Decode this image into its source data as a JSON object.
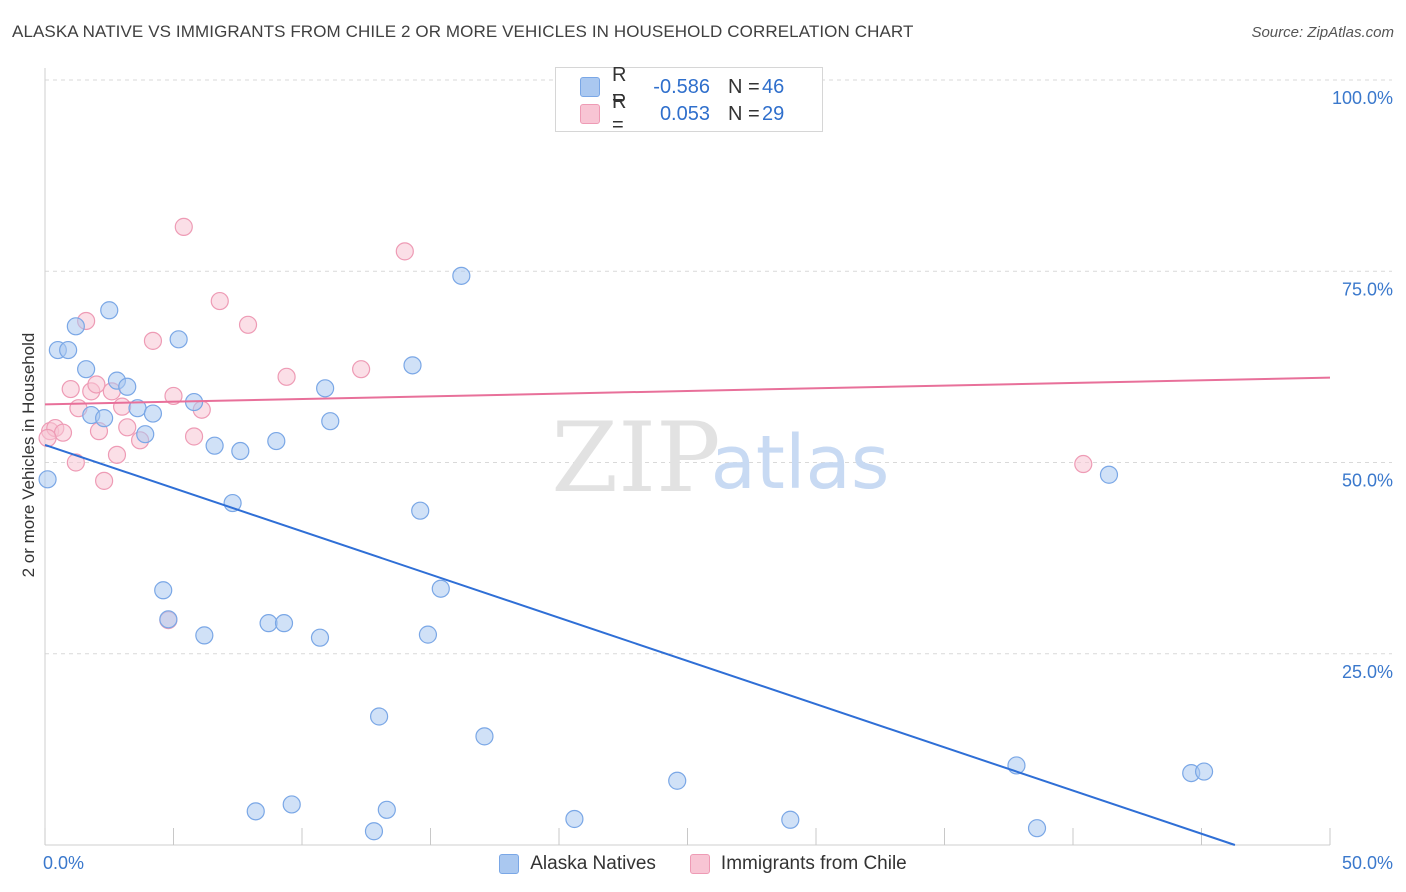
{
  "title": "ALASKA NATIVE VS IMMIGRANTS FROM CHILE 2 OR MORE VEHICLES IN HOUSEHOLD CORRELATION CHART",
  "source": "Source: ZipAtlas.com",
  "watermark": {
    "zip": "ZIP",
    "atlas": "atlas"
  },
  "legend_top": {
    "rows": [
      {
        "r_label": "R =",
        "r_value": "-0.586",
        "n_label": "N =",
        "n_value": "46"
      },
      {
        "r_label": "R =",
        "r_value": "0.053",
        "n_label": "N =",
        "n_value": "29"
      }
    ]
  },
  "legend_bottom": [
    "Alaska Natives",
    "Immigrants from Chile"
  ],
  "colors": {
    "blue_fill": "#aac8f0",
    "blue_stroke": "#7aa7e6",
    "blue_line": "#2f6fd6",
    "pink_fill": "#f8c5d4",
    "pink_stroke": "#ee9bb5",
    "pink_line": "#e8709a",
    "grid": "#d9d9d9",
    "tick_label": "#3a78cc"
  },
  "chart_data": {
    "type": "scatter",
    "title": "ALASKA NATIVE VS IMMIGRANTS FROM CHILE 2 OR MORE VEHICLES IN HOUSEHOLD CORRELATION CHART",
    "xlabel": "",
    "ylabel": "2 or more Vehicles in Household",
    "xlim": [
      0,
      50
    ],
    "ylim": [
      0,
      100
    ],
    "x_tick_labels": [
      "0.0%",
      "50.0%"
    ],
    "y_ticks": [
      25,
      50,
      75,
      100
    ],
    "y_tick_labels": [
      "25.0%",
      "50.0%",
      "75.0%",
      "100.0%"
    ],
    "grid": true,
    "series": [
      {
        "name": "Alaska Natives",
        "color": "blue",
        "points": [
          [
            0.1,
            47.8
          ],
          [
            0.5,
            64.7
          ],
          [
            0.9,
            64.7
          ],
          [
            1.2,
            67.8
          ],
          [
            1.6,
            62.2
          ],
          [
            2.5,
            69.9
          ],
          [
            1.8,
            56.2
          ],
          [
            2.3,
            55.8
          ],
          [
            2.8,
            60.7
          ],
          [
            3.2,
            59.9
          ],
          [
            3.6,
            57.1
          ],
          [
            3.9,
            53.7
          ],
          [
            4.2,
            56.4
          ],
          [
            4.6,
            33.3
          ],
          [
            4.8,
            29.5
          ],
          [
            5.2,
            66.1
          ],
          [
            5.8,
            57.9
          ],
          [
            6.2,
            27.4
          ],
          [
            6.6,
            52.2
          ],
          [
            7.3,
            44.7
          ],
          [
            7.6,
            51.5
          ],
          [
            8.2,
            4.4
          ],
          [
            8.7,
            29.0
          ],
          [
            9.0,
            52.8
          ],
          [
            9.3,
            29.0
          ],
          [
            9.6,
            5.3
          ],
          [
            10.7,
            27.1
          ],
          [
            10.9,
            59.7
          ],
          [
            11.1,
            55.4
          ],
          [
            12.8,
            1.8
          ],
          [
            13.0,
            16.8
          ],
          [
            13.3,
            4.6
          ],
          [
            14.3,
            62.7
          ],
          [
            14.6,
            43.7
          ],
          [
            14.9,
            27.5
          ],
          [
            15.4,
            33.5
          ],
          [
            16.2,
            74.4
          ],
          [
            17.1,
            14.2
          ],
          [
            20.6,
            3.4
          ],
          [
            24.6,
            8.4
          ],
          [
            29.0,
            3.3
          ],
          [
            37.8,
            10.4
          ],
          [
            38.6,
            2.2
          ],
          [
            41.4,
            48.4
          ],
          [
            44.6,
            9.4
          ],
          [
            45.1,
            9.6
          ]
        ],
        "trend": {
          "x": [
            0,
            46.3
          ],
          "y": [
            52.3,
            0
          ]
        }
      },
      {
        "name": "Immigrants from Chile",
        "color": "pink",
        "points": [
          [
            0.2,
            54.1
          ],
          [
            0.4,
            54.5
          ],
          [
            0.7,
            53.9
          ],
          [
            1.0,
            59.6
          ],
          [
            1.2,
            50.0
          ],
          [
            1.3,
            57.1
          ],
          [
            1.6,
            68.5
          ],
          [
            1.8,
            59.3
          ],
          [
            2.0,
            60.2
          ],
          [
            2.1,
            54.1
          ],
          [
            2.3,
            47.6
          ],
          [
            2.6,
            59.3
          ],
          [
            2.8,
            51.0
          ],
          [
            3.0,
            57.3
          ],
          [
            3.2,
            54.6
          ],
          [
            3.7,
            52.9
          ],
          [
            4.2,
            65.9
          ],
          [
            4.8,
            29.4
          ],
          [
            5.0,
            58.7
          ],
          [
            5.4,
            80.8
          ],
          [
            5.8,
            53.4
          ],
          [
            6.1,
            56.9
          ],
          [
            6.8,
            71.1
          ],
          [
            7.9,
            68.0
          ],
          [
            9.4,
            61.2
          ],
          [
            12.3,
            62.2
          ],
          [
            14.0,
            77.6
          ],
          [
            40.4,
            49.8
          ],
          [
            0.1,
            53.2
          ]
        ],
        "trend": {
          "x": [
            0,
            50
          ],
          "y": [
            57.6,
            61.1
          ]
        }
      }
    ]
  }
}
